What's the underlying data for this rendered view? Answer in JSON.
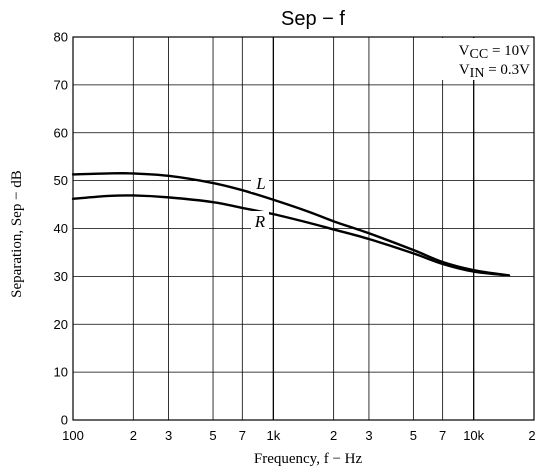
{
  "chart_data": {
    "type": "line",
    "title": "Sep  −  f",
    "xlabel": "Frequency, f  −  Hz",
    "ylabel": "Separation, Sep  −  dB",
    "x_scale": "log",
    "xlim": [
      100,
      20000
    ],
    "ylim": [
      0,
      80
    ],
    "y_ticks": [
      0,
      10,
      20,
      30,
      40,
      50,
      60,
      70,
      80
    ],
    "x_ticks": [
      {
        "value": 100,
        "label": "100"
      },
      {
        "value": 200,
        "label": "2"
      },
      {
        "value": 300,
        "label": "3"
      },
      {
        "value": 500,
        "label": "5"
      },
      {
        "value": 700,
        "label": "7"
      },
      {
        "value": 1000,
        "label": "1k"
      },
      {
        "value": 2000,
        "label": "2"
      },
      {
        "value": 3000,
        "label": "3"
      },
      {
        "value": 5000,
        "label": "5"
      },
      {
        "value": 7000,
        "label": "7"
      },
      {
        "value": 10000,
        "label": "10k"
      },
      {
        "value": 20000,
        "label": "2"
      }
    ],
    "grid": true,
    "annotation": {
      "line1": {
        "main": "V",
        "sub": "CC",
        "rest": " = 10V"
      },
      "line2": {
        "main": "V",
        "sub": "IN",
        "rest": " = 0.3V"
      }
    },
    "series": [
      {
        "name": "L",
        "x": [
          100,
          150,
          200,
          300,
          500,
          700,
          1000,
          1500,
          2000,
          3000,
          5000,
          7000,
          10000,
          15000
        ],
        "y": [
          51.3,
          51.5,
          51.5,
          51.0,
          49.5,
          48.0,
          46.0,
          43.5,
          41.5,
          39.0,
          35.5,
          33.0,
          31.3,
          30.2
        ]
      },
      {
        "name": "R",
        "x": [
          100,
          150,
          200,
          300,
          500,
          700,
          1000,
          1500,
          2000,
          3000,
          5000,
          7000,
          10000,
          15000
        ],
        "y": [
          46.2,
          46.8,
          46.9,
          46.5,
          45.5,
          44.3,
          43.0,
          41.2,
          39.8,
          37.8,
          34.8,
          32.6,
          31.0,
          30.2
        ]
      }
    ]
  }
}
